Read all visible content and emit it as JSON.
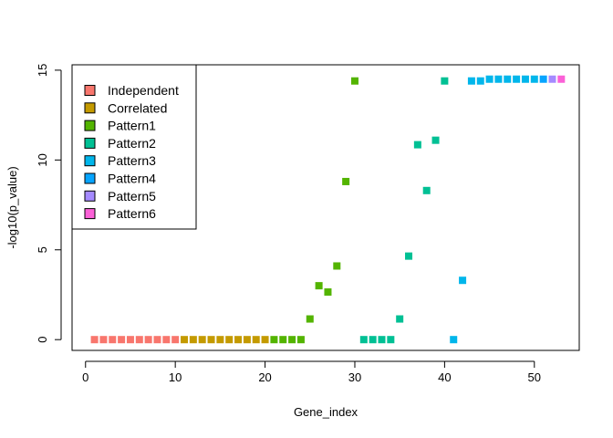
{
  "chart_data": {
    "type": "scatter",
    "title": "",
    "xlabel": "Gene_index",
    "ylabel": "-log10(p_value)",
    "xlim": [
      -1.5,
      55
    ],
    "ylim": [
      -0.6,
      15.3
    ],
    "xticks": [
      0,
      10,
      20,
      30,
      40,
      50
    ],
    "yticks": [
      0,
      5,
      10,
      15
    ],
    "marker": "filled-square",
    "grid": false,
    "legend_position": "top-left",
    "series": [
      {
        "name": "Independent",
        "color": "#F8766D",
        "x": [
          1,
          2,
          3,
          4,
          5,
          6,
          7,
          8,
          9,
          10
        ],
        "y": [
          0,
          0,
          0,
          0,
          0,
          0,
          0,
          0,
          0,
          0
        ]
      },
      {
        "name": "Correlated",
        "color": "#C49A00",
        "x": [
          11,
          12,
          13,
          14,
          15,
          16,
          17,
          18,
          19,
          20
        ],
        "y": [
          0,
          0,
          0,
          0,
          0,
          0,
          0,
          0,
          0,
          0
        ]
      },
      {
        "name": "Pattern1",
        "color": "#53B400",
        "x": [
          21,
          22,
          23,
          24,
          25,
          26,
          27,
          28,
          29,
          30
        ],
        "y": [
          0,
          0,
          0,
          0,
          1.15,
          3.0,
          2.65,
          4.1,
          8.8,
          14.4
        ]
      },
      {
        "name": "Pattern2",
        "color": "#00C094",
        "x": [
          31,
          32,
          33,
          34,
          35,
          36,
          37,
          38,
          39,
          40
        ],
        "y": [
          0,
          0,
          0,
          0,
          1.15,
          4.65,
          10.85,
          8.3,
          11.1,
          14.4
        ]
      },
      {
        "name": "Pattern3",
        "color": "#00B6EB",
        "x": [
          41,
          42,
          43,
          44,
          45,
          46,
          47,
          48,
          49,
          50
        ],
        "y": [
          0,
          3.3,
          14.4,
          14.4,
          14.5,
          14.5,
          14.5,
          14.5,
          14.5,
          14.5
        ]
      },
      {
        "name": "Pattern4",
        "color": "#06A4FF",
        "x": [
          51
        ],
        "y": [
          14.5
        ]
      },
      {
        "name": "Pattern5",
        "color": "#A58AFF",
        "x": [
          52
        ],
        "y": [
          14.5
        ]
      },
      {
        "name": "Pattern6",
        "color": "#FB61D7",
        "x": [
          53
        ],
        "y": [
          14.5
        ]
      }
    ]
  }
}
